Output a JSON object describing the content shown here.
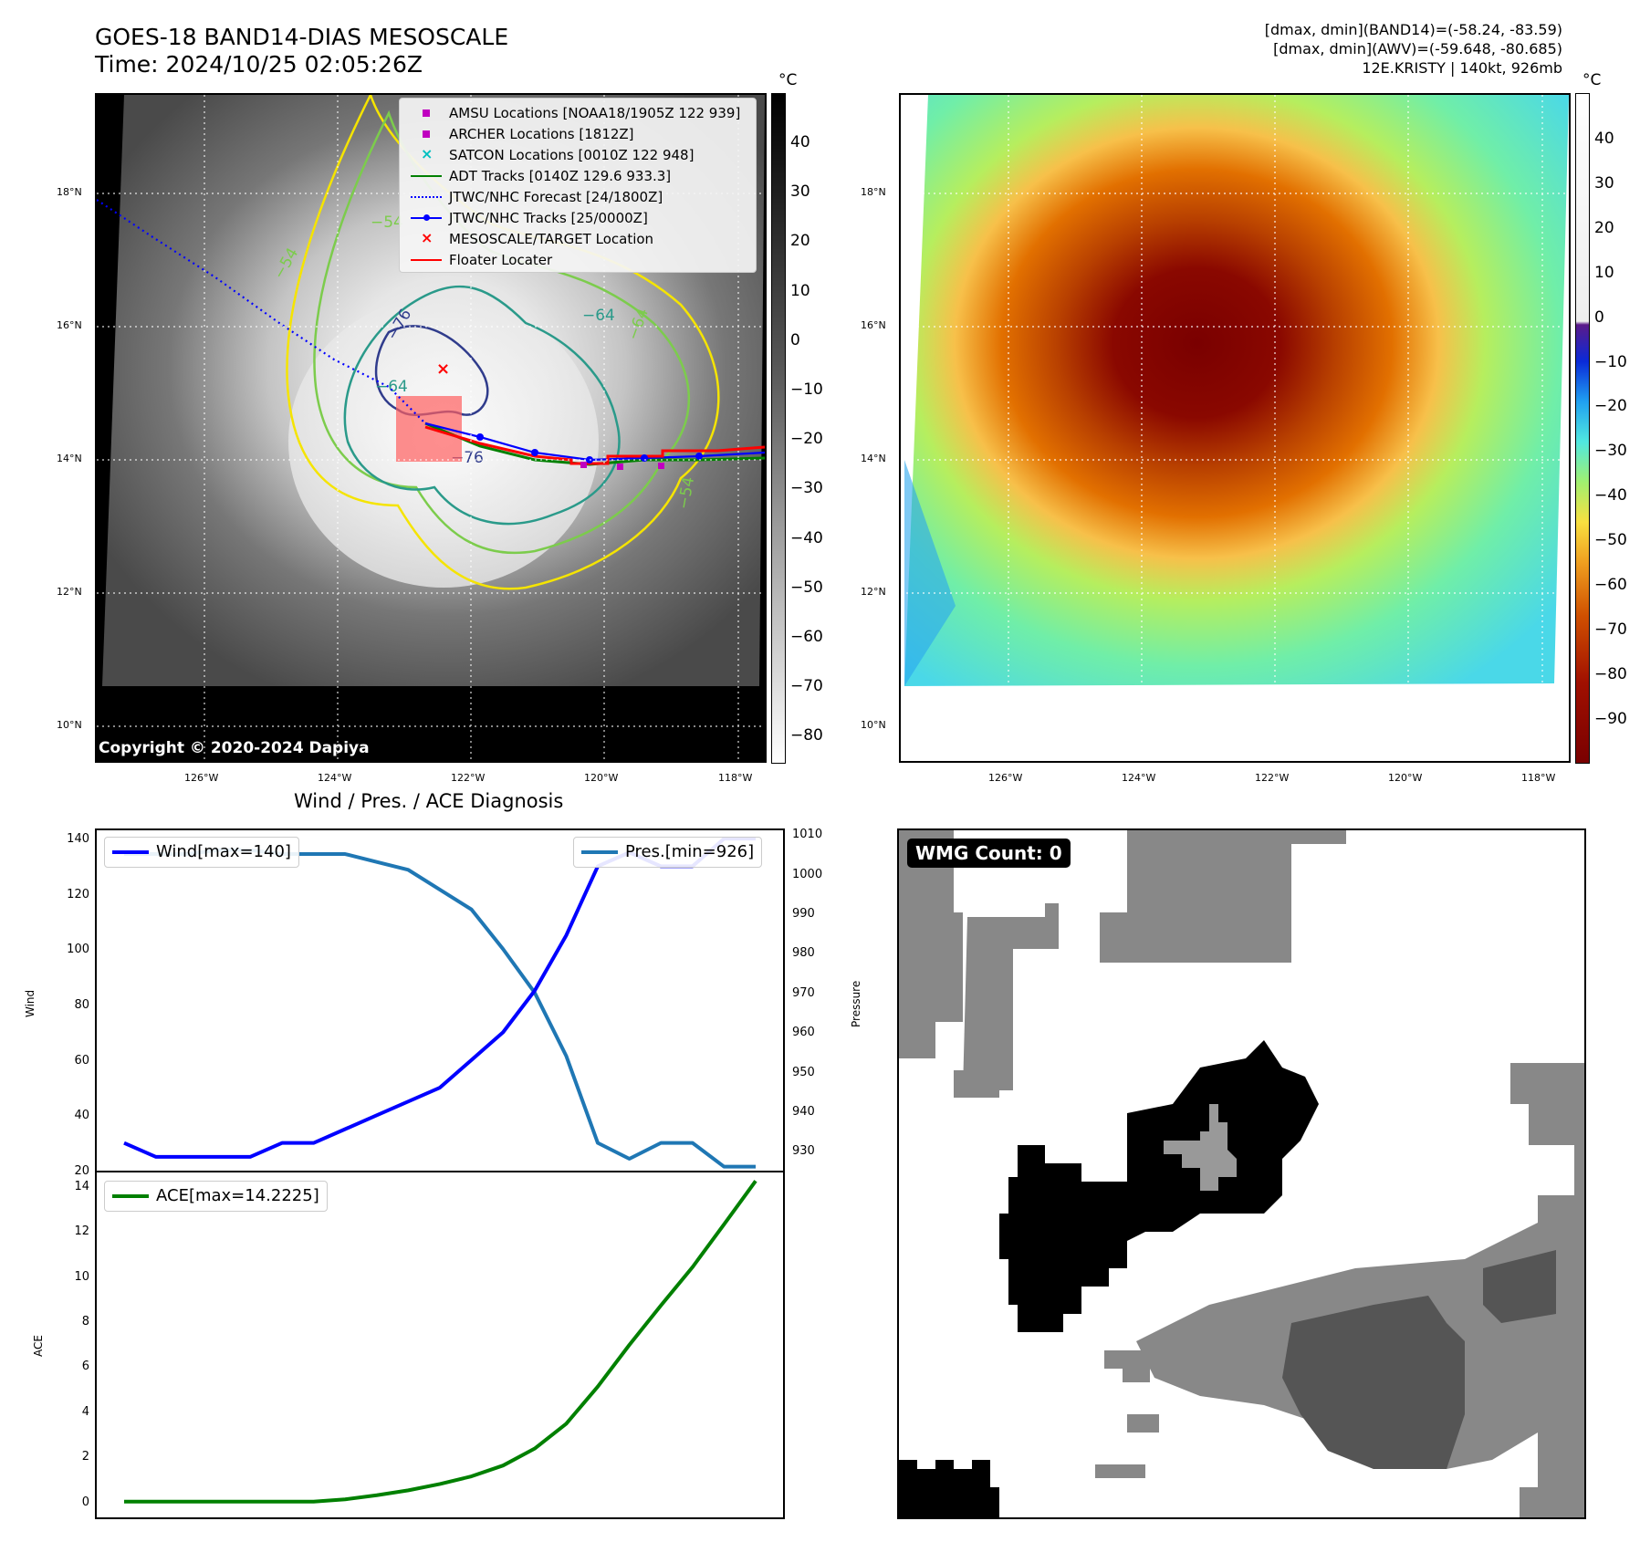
{
  "header": {
    "title_line1": "GOES-18 BAND14-DIAS MESOSCALE",
    "title_line2": "Time: 2024/10/25 02:05:26Z",
    "info_line1": "[dmax, dmin](BAND14)=(-58.24, -83.59)",
    "info_line2": "[dmax, dmin](AWV)=(-59.648, -80.685)",
    "info_line3": "12E.KRISTY | 140kt, 926mb"
  },
  "map_panels": {
    "lat_labels": [
      "18°N",
      "16°N",
      "14°N",
      "12°N",
      "10°N"
    ],
    "lon_labels": [
      "126°W",
      "124°W",
      "122°W",
      "120°W",
      "118°W"
    ],
    "left_colorbar_ticks": [
      "40",
      "30",
      "20",
      "10",
      "0",
      "−10",
      "−20",
      "−30",
      "−40",
      "−50",
      "−60",
      "−70",
      "−80"
    ],
    "right_colorbar_ticks": [
      "40",
      "30",
      "20",
      "10",
      "0",
      "−10",
      "−20",
      "−30",
      "−40",
      "−50",
      "−60",
      "−70",
      "−80",
      "−90"
    ],
    "unit_label": "°C",
    "copyright": "Copyright © 2020-2024 Dapiya",
    "contour_labels": [
      "−64",
      "−54",
      "−64",
      "−54",
      "−64",
      "−76",
      "−76",
      "−54"
    ],
    "legend": [
      "AMSU Locations [NOAA18/1905Z 122 939]",
      "ARCHER Locations [1812Z]",
      "SATCON Locations [0010Z 122 948]",
      "ADT Tracks [0140Z 129.6 933.3]",
      "JTWC/NHC Forecast [24/1800Z]",
      "JTWC/NHC Tracks [25/0000Z]",
      "MESOSCALE/TARGET Location",
      "Floater Locater"
    ],
    "colors": {
      "amsu": "#c000c0",
      "archer": "#c000c0",
      "satcon": "#00c0c0",
      "adt": "#008000",
      "forecast": "#0000ff",
      "tracks": "#0000ff",
      "target": "#ff0000",
      "floater": "#ff0000"
    }
  },
  "wmg": {
    "label": "WMG Count: 0"
  },
  "chart_data": [
    {
      "type": "line",
      "title": "Wind / Pres. / ACE Diagnosis",
      "ylabel": "Wind",
      "ylabel2": "Pressure",
      "ylim": [
        20,
        143
      ],
      "ylim2": [
        925,
        1011
      ],
      "yticks": [
        20,
        40,
        60,
        80,
        100,
        120,
        140
      ],
      "yticks2": [
        930,
        940,
        950,
        960,
        970,
        980,
        990,
        1000,
        1010
      ],
      "series": [
        {
          "name": "Wind[max=140]",
          "color": "#0000ff",
          "axis": "left",
          "values": [
            30,
            25,
            25,
            25,
            25,
            30,
            30,
            35,
            40,
            45,
            50,
            60,
            70,
            85,
            105,
            130,
            135,
            130,
            130,
            140,
            140
          ]
        },
        {
          "name": "Pres.[min=926]",
          "color": "#1f77b4",
          "axis": "right",
          "values": [
            1005,
            1005,
            1005,
            1006,
            1006,
            1005,
            1005,
            1005,
            1003,
            1001,
            996,
            991,
            981,
            970,
            954,
            932,
            928,
            932,
            932,
            926,
            926
          ]
        }
      ]
    },
    {
      "type": "line",
      "ylabel": "ACE",
      "ylim": [
        -0.7,
        14.6
      ],
      "yticks": [
        0,
        2,
        4,
        6,
        8,
        10,
        12,
        14
      ],
      "series": [
        {
          "name": "ACE[max=14.2225]",
          "color": "#008000",
          "values": [
            0,
            0,
            0,
            0,
            0,
            0,
            0,
            0.1,
            0.28,
            0.5,
            0.78,
            1.12,
            1.6,
            2.35,
            3.45,
            5.1,
            6.95,
            8.7,
            10.4,
            12.3,
            14.2225
          ]
        }
      ]
    }
  ]
}
